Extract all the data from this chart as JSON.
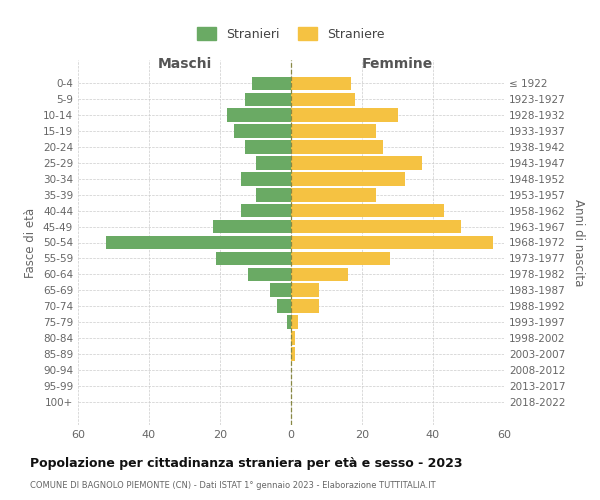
{
  "age_groups": [
    "0-4",
    "5-9",
    "10-14",
    "15-19",
    "20-24",
    "25-29",
    "30-34",
    "35-39",
    "40-44",
    "45-49",
    "50-54",
    "55-59",
    "60-64",
    "65-69",
    "70-74",
    "75-79",
    "80-84",
    "85-89",
    "90-94",
    "95-99",
    "100+"
  ],
  "birth_years": [
    "2018-2022",
    "2013-2017",
    "2008-2012",
    "2003-2007",
    "1998-2002",
    "1993-1997",
    "1988-1992",
    "1983-1987",
    "1978-1982",
    "1973-1977",
    "1968-1972",
    "1963-1967",
    "1958-1962",
    "1953-1957",
    "1948-1952",
    "1943-1947",
    "1938-1942",
    "1933-1937",
    "1928-1932",
    "1923-1927",
    "≤ 1922"
  ],
  "males": [
    11,
    13,
    18,
    16,
    13,
    10,
    14,
    10,
    14,
    22,
    52,
    21,
    12,
    6,
    4,
    1,
    0,
    0,
    0,
    0,
    0
  ],
  "females": [
    17,
    18,
    30,
    24,
    26,
    37,
    32,
    24,
    43,
    48,
    57,
    28,
    16,
    8,
    8,
    2,
    1,
    1,
    0,
    0,
    0
  ],
  "male_color": "#6aaa64",
  "female_color": "#f5c242",
  "background_color": "#ffffff",
  "grid_color": "#cccccc",
  "title": "Popolazione per cittadinanza straniera per età e sesso - 2023",
  "subtitle": "COMUNE DI BAGNOLO PIEMONTE (CN) - Dati ISTAT 1° gennaio 2023 - Elaborazione TUTTITALIA.IT",
  "xlabel_left": "Maschi",
  "xlabel_right": "Femmine",
  "ylabel_left": "Fasce di età",
  "ylabel_right": "Anni di nascita",
  "legend_male": "Stranieri",
  "legend_female": "Straniere",
  "xlim": 60,
  "bar_height": 0.85
}
